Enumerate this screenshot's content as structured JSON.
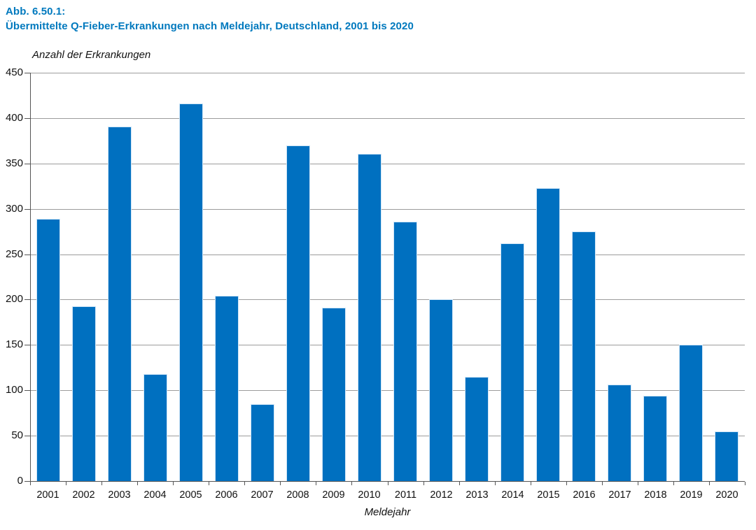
{
  "figure": {
    "label": "Abb. 6.50.1:",
    "title": "Übermittelte Q-Fieber-Erkrankungen nach Meldejahr, Deutschland, 2001 bis 2020"
  },
  "colors": {
    "bar": "#0070c0",
    "bar_edge": "#cfe5f7",
    "heading": "#0079be",
    "gridline": "#9c9c9c",
    "axis": "#555555",
    "text": "#111111"
  },
  "chart_data": {
    "type": "bar",
    "title": "Übermittelte Q-Fieber-Erkrankungen nach Meldejahr, Deutschland, 2001 bis 2020",
    "ylabel": "Anzahl der Erkrankungen",
    "xlabel": "Meldejahr",
    "categories": [
      "2001",
      "2002",
      "2003",
      "2004",
      "2005",
      "2006",
      "2007",
      "2008",
      "2009",
      "2010",
      "2011",
      "2012",
      "2013",
      "2014",
      "2015",
      "2016",
      "2017",
      "2018",
      "2019",
      "2020"
    ],
    "values": [
      289,
      193,
      391,
      118,
      416,
      204,
      85,
      370,
      191,
      361,
      286,
      200,
      115,
      262,
      323,
      275,
      106,
      94,
      150,
      55
    ],
    "ylim": [
      0,
      450
    ],
    "ytick_interval": 50,
    "grid": true,
    "legend": "none"
  }
}
